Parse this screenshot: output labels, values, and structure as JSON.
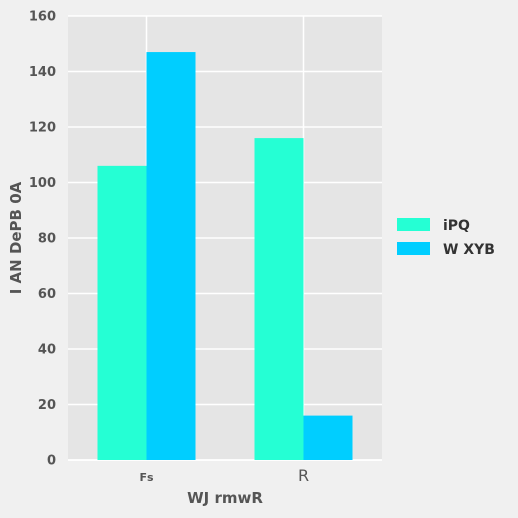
{
  "chart_data": {
    "type": "bar",
    "categories": [
      "Fs",
      "R"
    ],
    "series": [
      {
        "name": "iPQ",
        "values": [
          106,
          116
        ],
        "color": "#25ffd4"
      },
      {
        "name": "W XYB",
        "values": [
          147,
          16
        ],
        "color": "#00ceff"
      }
    ],
    "xlabel": "WJ rmwR",
    "ylabel": "I AN  DePB 0A",
    "ylim": [
      0,
      160
    ],
    "yticks": [
      0,
      20,
      40,
      60,
      80,
      100,
      120,
      140,
      160
    ],
    "grid": true,
    "legend_position": "right",
    "background_color": "#e5e5e5",
    "grid_color": "#ffffff",
    "page_color": "#f0f0f0"
  }
}
